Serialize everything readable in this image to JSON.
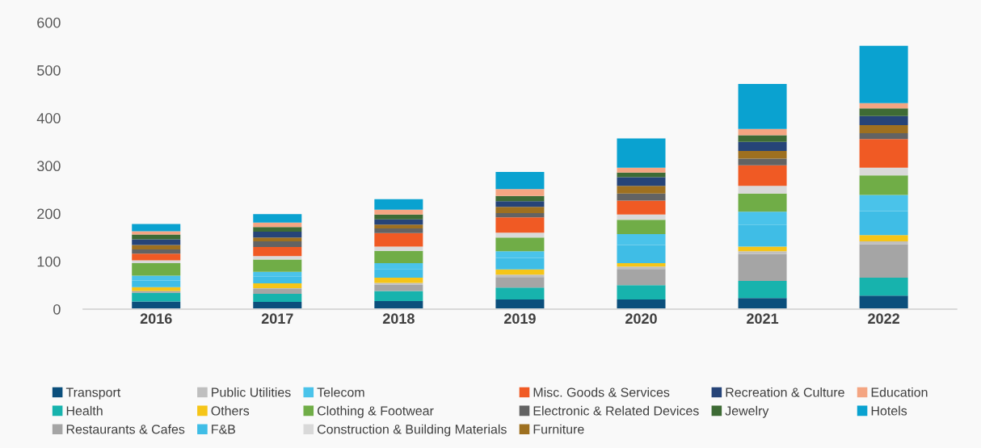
{
  "chart_data": {
    "type": "bar",
    "stacked": true,
    "categories": [
      "2016",
      "2017",
      "2018",
      "2019",
      "2020",
      "2021",
      "2022"
    ],
    "ylim": [
      0,
      600
    ],
    "yticks": [
      0,
      100,
      200,
      300,
      400,
      500,
      600
    ],
    "grid": false,
    "legend": "bottom",
    "series": [
      {
        "name": "Transport",
        "color": "#0b4f7c",
        "values": [
          16,
          15,
          17,
          20,
          20,
          23,
          28
        ]
      },
      {
        "name": "Health",
        "color": "#17b3ad",
        "values": [
          18,
          17,
          21,
          25,
          30,
          36,
          38
        ]
      },
      {
        "name": "Restaurants & Cafes",
        "color": "#a5a5a5",
        "values": [
          4,
          10,
          13,
          22,
          34,
          56,
          70
        ]
      },
      {
        "name": "Public Utilities",
        "color": "#bfbfbf",
        "values": [
          null,
          2,
          4,
          5,
          5,
          6,
          6
        ]
      },
      {
        "name": "Others",
        "color": "#f5c518",
        "values": [
          8,
          10,
          11,
          11,
          7,
          10,
          13
        ]
      },
      {
        "name": "F&B",
        "color": "#3fbde6",
        "values": [
          14,
          14,
          18,
          24,
          38,
          45,
          50
        ]
      },
      {
        "name": "Telecom",
        "color": "#4ac3ea",
        "values": [
          10,
          10,
          12,
          14,
          23,
          28,
          34
        ]
      },
      {
        "name": "Clothing & Footwear",
        "color": "#70ad47",
        "values": [
          26,
          26,
          26,
          29,
          30,
          38,
          41
        ]
      },
      {
        "name": "Construction & Building Materials",
        "color": "#d9d9d9",
        "values": [
          6,
          7,
          9,
          10,
          11,
          16,
          16
        ]
      },
      {
        "name": "Misc. Goods & Services",
        "color": "#f05a24",
        "values": [
          14,
          19,
          28,
          32,
          29,
          43,
          60
        ]
      },
      {
        "name": "Electronic & Related Devices",
        "color": "#636363",
        "values": [
          9,
          12,
          10,
          9,
          15,
          14,
          12
        ]
      },
      {
        "name": "Furniture",
        "color": "#9e7020",
        "values": [
          9,
          8,
          8,
          13,
          16,
          16,
          17
        ]
      },
      {
        "name": "Recreation & Culture",
        "color": "#264478",
        "values": [
          12,
          12,
          11,
          12,
          18,
          19,
          19
        ]
      },
      {
        "name": "Jewelry",
        "color": "#3e6b35",
        "values": [
          10,
          10,
          10,
          11,
          10,
          14,
          16
        ]
      },
      {
        "name": "Education",
        "color": "#f4a582",
        "values": [
          7,
          9,
          10,
          14,
          10,
          13,
          11
        ]
      },
      {
        "name": "Hotels",
        "color": "#0aa2d0",
        "values": [
          15,
          18,
          22,
          36,
          61,
          94,
          120
        ]
      }
    ]
  }
}
